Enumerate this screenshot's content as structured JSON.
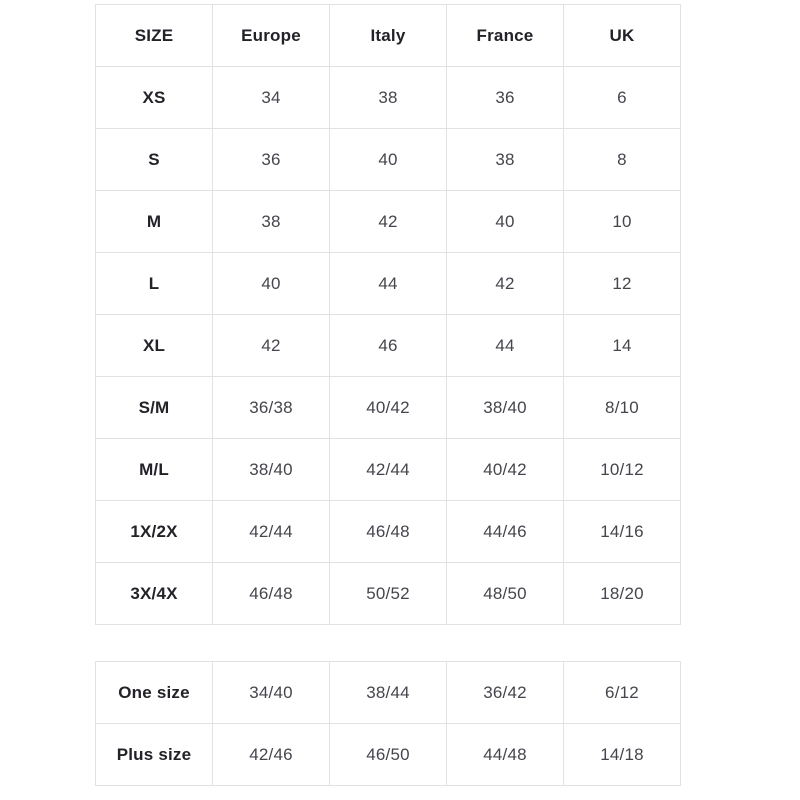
{
  "main_table": {
    "headers": [
      "SIZE",
      "Europe",
      "Italy",
      "France",
      "UK"
    ],
    "rows": [
      {
        "size": "XS",
        "values": [
          "34",
          "38",
          "36",
          "6"
        ]
      },
      {
        "size": "S",
        "values": [
          "36",
          "40",
          "38",
          "8"
        ]
      },
      {
        "size": "M",
        "values": [
          "38",
          "42",
          "40",
          "10"
        ]
      },
      {
        "size": "L",
        "values": [
          "40",
          "44",
          "42",
          "12"
        ]
      },
      {
        "size": "XL",
        "values": [
          "42",
          "46",
          "44",
          "14"
        ]
      },
      {
        "size": "S/M",
        "values": [
          "36/38",
          "40/42",
          "38/40",
          "8/10"
        ]
      },
      {
        "size": "M/L",
        "values": [
          "38/40",
          "42/44",
          "40/42",
          "10/12"
        ]
      },
      {
        "size": "1X/2X",
        "values": [
          "42/44",
          "46/48",
          "44/46",
          "14/16"
        ]
      },
      {
        "size": "3X/4X",
        "values": [
          "46/48",
          "50/52",
          "48/50",
          "18/20"
        ]
      }
    ]
  },
  "secondary_table": {
    "rows": [
      {
        "size": "One size",
        "values": [
          "34/40",
          "38/44",
          "36/42",
          "6/12"
        ]
      },
      {
        "size": "Plus size",
        "values": [
          "42/46",
          "46/50",
          "44/48",
          "14/18"
        ]
      }
    ]
  },
  "colors": {
    "border": "#e2e2e2",
    "header_text": "#222228",
    "value_text": "#45454d",
    "background": "#ffffff"
  }
}
